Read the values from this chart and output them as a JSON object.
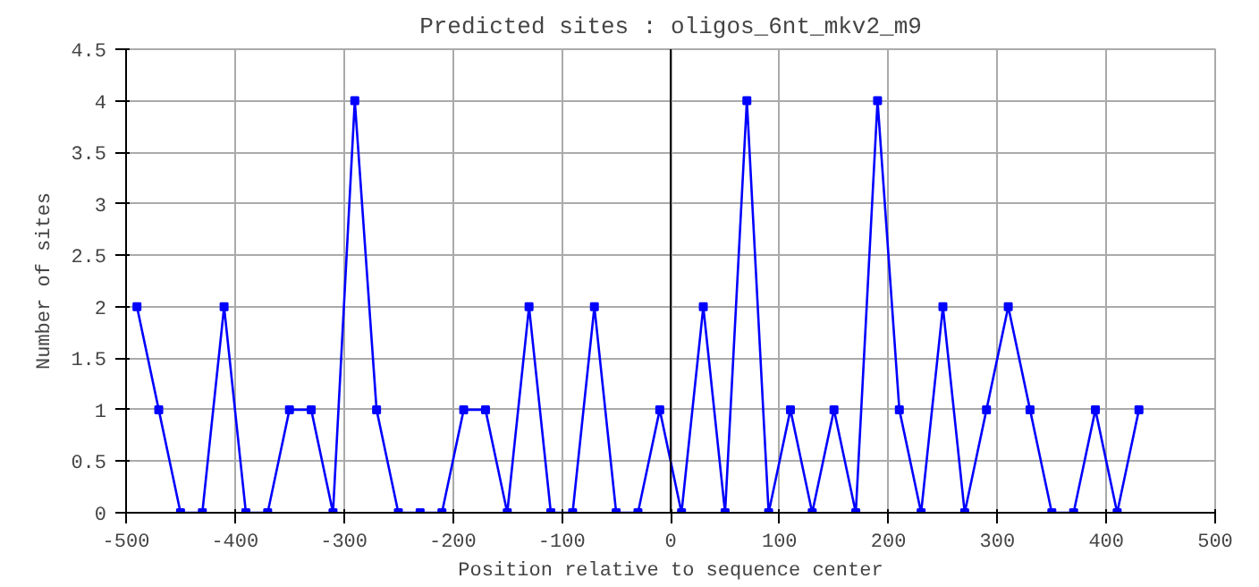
{
  "chart_data": {
    "type": "line",
    "title": "Predicted sites : oligos_6nt_mkv2_m9",
    "xlabel": "Position relative to sequence center",
    "ylabel": "Number of sites",
    "x": [
      -490,
      -470,
      -450,
      -430,
      -410,
      -390,
      -370,
      -350,
      -330,
      -310,
      -290,
      -270,
      -250,
      -230,
      -210,
      -190,
      -170,
      -150,
      -130,
      -110,
      -90,
      -70,
      -50,
      -30,
      -10,
      10,
      30,
      50,
      70,
      90,
      110,
      130,
      150,
      170,
      190,
      210,
      230,
      250,
      270,
      290,
      310,
      330,
      350,
      370,
      390,
      410,
      430
    ],
    "series": [
      {
        "color": "#0000ff",
        "values": [
          2,
          1,
          0,
          0,
          2,
          0,
          0,
          1,
          1,
          0,
          4,
          1,
          0,
          0,
          0,
          1,
          1,
          0,
          2,
          0,
          0,
          2,
          0,
          0,
          1,
          0,
          2,
          0,
          4,
          0,
          1,
          0,
          1,
          0,
          4,
          1,
          0,
          2,
          0,
          1,
          2,
          1,
          0,
          0,
          1,
          0,
          1
        ]
      }
    ],
    "xlim": [
      -500,
      500
    ],
    "xticks": [
      -500,
      -400,
      -300,
      -200,
      -100,
      0,
      100,
      200,
      300,
      400,
      500
    ],
    "ylim": [
      0,
      4.5
    ],
    "yticks": [
      0,
      0.5,
      1,
      1.5,
      2,
      2.5,
      3,
      3.5,
      4,
      4.5
    ],
    "ref_lines": [
      {
        "axis": "x",
        "value": 0,
        "color": "#000000"
      }
    ],
    "grid": true,
    "marker": "square",
    "line_style": "solid"
  }
}
